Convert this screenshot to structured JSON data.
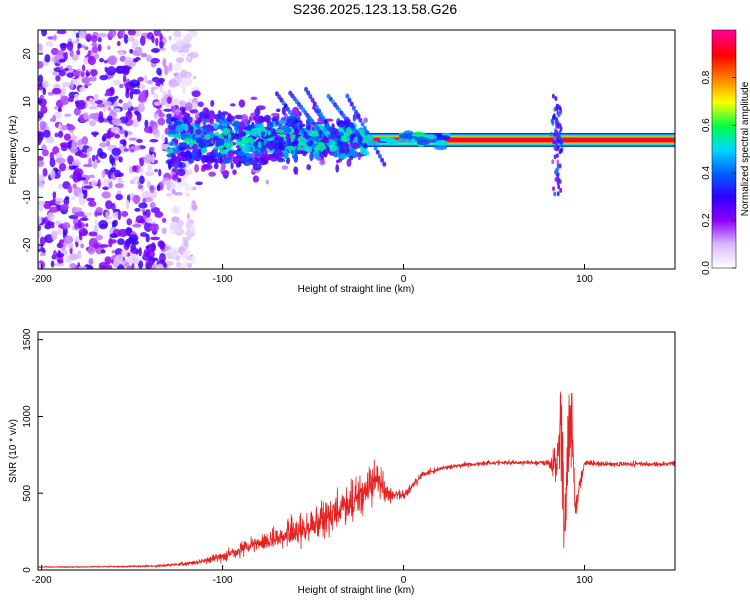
{
  "title": "S236.2025.123.13.58.G26",
  "chart_data": [
    {
      "type": "heatmap",
      "xlabel": "Height of straight line (km)",
      "ylabel": "Frequency (Hz)",
      "xlim": [
        -202,
        150
      ],
      "ylim": [
        -25,
        25
      ],
      "x_ticks": [
        -200,
        -100,
        0,
        100
      ],
      "y_ticks": [
        -20,
        -10,
        0,
        10,
        20
      ],
      "grid": false,
      "colorbar": {
        "label": "Normalized spectral amplitude",
        "range": [
          0,
          1
        ],
        "ticks": [
          "0.0",
          "0.2",
          "0.4",
          "0.6",
          "0.8"
        ],
        "colormap": [
          "#ffffff",
          "#d8b8ff",
          "#8f00ff",
          "#3000ff",
          "#0060ff",
          "#00d8ff",
          "#00ff40",
          "#ffff00",
          "#ff8000",
          "#ff0000",
          "#ff0090"
        ]
      },
      "features": [
        {
          "name": "carrier",
          "x_range": [
            -20,
            150
          ],
          "frequency": 2,
          "amplitude": 0.95
        },
        {
          "name": "noise",
          "x_range": [
            -202,
            -130
          ],
          "frequency_range": [
            -25,
            25
          ],
          "amplitude": 0.2
        },
        {
          "name": "transition",
          "x_range": [
            -130,
            -20
          ],
          "frequency_range": [
            -12,
            16
          ],
          "amplitude": 0.45
        }
      ]
    },
    {
      "type": "line",
      "xlabel": "Height of straight line (km)",
      "ylabel": "SNR (10 * v/v)",
      "xlim": [
        -202,
        150
      ],
      "ylim": [
        0,
        1550
      ],
      "x_ticks": [
        -200,
        -100,
        0,
        100
      ],
      "y_ticks": [
        0,
        500,
        1000,
        1500
      ],
      "grid": false,
      "series": [
        {
          "color": "#e82020",
          "x": [
            -202,
            -180,
            -160,
            -140,
            -120,
            -110,
            -100,
            -90,
            -80,
            -70,
            -60,
            -50,
            -40,
            -30,
            -20,
            -15,
            -10,
            0,
            10,
            20,
            30,
            40,
            50,
            60,
            70,
            80,
            84,
            87,
            89,
            91,
            93,
            95,
            100,
            110,
            120,
            130,
            140,
            150
          ],
          "y": [
            20,
            20,
            22,
            25,
            40,
            60,
            90,
            130,
            170,
            210,
            250,
            300,
            360,
            430,
            520,
            600,
            500,
            480,
            620,
            660,
            680,
            690,
            700,
            700,
            700,
            700,
            680,
            900,
            300,
            1000,
            900,
            400,
            700,
            690,
            690,
            690,
            690,
            690
          ],
          "noise": [
            5,
            5,
            6,
            8,
            15,
            25,
            40,
            60,
            70,
            90,
            110,
            130,
            150,
            170,
            160,
            180,
            80,
            40,
            30,
            20,
            18,
            18,
            18,
            18,
            18,
            25,
            180,
            500,
            300,
            550,
            350,
            100,
            25,
            20,
            20,
            20,
            20,
            20
          ]
        }
      ]
    }
  ]
}
